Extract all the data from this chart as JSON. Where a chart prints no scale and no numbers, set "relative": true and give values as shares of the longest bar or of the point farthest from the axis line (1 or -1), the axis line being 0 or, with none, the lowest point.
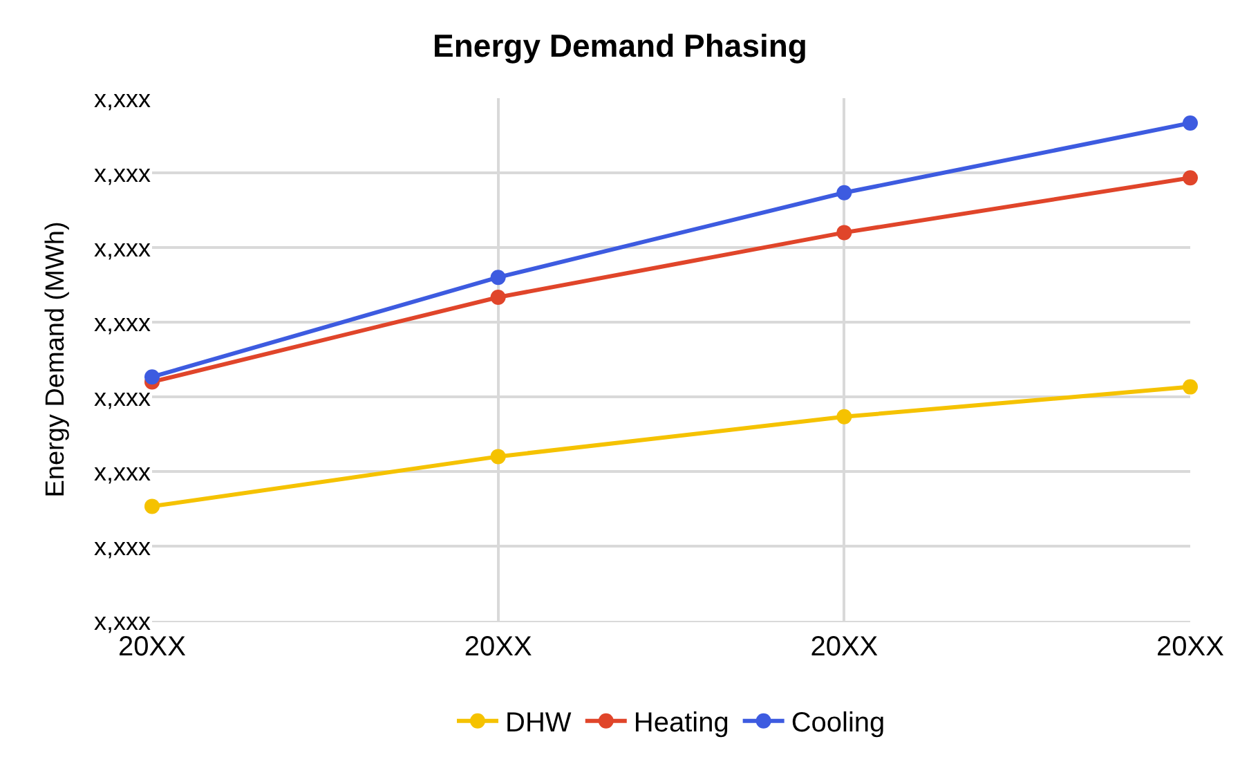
{
  "chart_data": {
    "type": "line",
    "title": "Energy Demand Phasing",
    "ylabel": "Energy Demand (MWh)",
    "relative": true,
    "categories": [
      "20XX",
      "20XX",
      "20XX",
      "20XX"
    ],
    "series": [
      {
        "name": "DHW",
        "color": "#f5c200",
        "values": [
          0.23,
          0.33,
          0.41,
          0.47
        ]
      },
      {
        "name": "Heating",
        "color": "#e0452a",
        "values": [
          0.48,
          0.65,
          0.78,
          0.89
        ]
      },
      {
        "name": "Cooling",
        "color": "#3d5be0",
        "values": [
          0.49,
          0.69,
          0.86,
          1
        ]
      }
    ],
    "annotations": [
      "x,xxx",
      "x,xxx",
      "x,xxx",
      "x,xxx",
      "x,xxx",
      "x,xxx",
      "x,xxx",
      "x,xxx"
    ],
    "grid": true,
    "legend": "bottom",
    "marker": "circle",
    "line_style": "solid"
  }
}
